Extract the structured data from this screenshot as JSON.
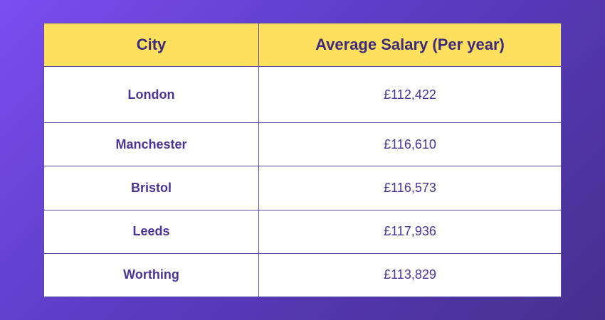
{
  "table": {
    "headers": {
      "city": "City",
      "salary": "Average Salary (Per year)"
    },
    "rows": [
      {
        "city": "London",
        "salary": "£112,422"
      },
      {
        "city": "Manchester",
        "salary": "£116,610"
      },
      {
        "city": "Bristol",
        "salary": "£116,573"
      },
      {
        "city": "Leeds",
        "salary": "£117,936"
      },
      {
        "city": "Worthing",
        "salary": "£113,829"
      }
    ]
  },
  "colors": {
    "background_start": "#7b4ef0",
    "background_end": "#45308e",
    "header_fill": "#ffdf5e",
    "text": "#4a3597",
    "border": "#5a4aa0"
  }
}
